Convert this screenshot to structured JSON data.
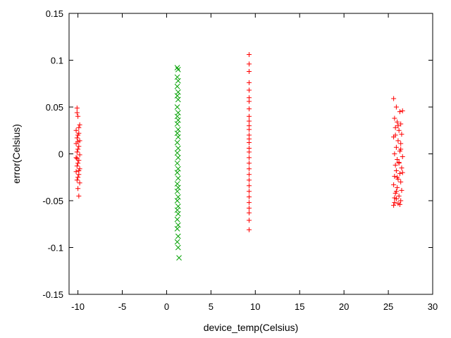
{
  "chart_data": {
    "type": "scatter",
    "title": "",
    "xlabel": "device_temp(Celsius)",
    "ylabel": "error(Celsius)",
    "xlim": [
      -11,
      30
    ],
    "ylim": [
      -0.15,
      0.15
    ],
    "xticks": [
      -10,
      -5,
      0,
      5,
      10,
      15,
      20,
      25,
      30
    ],
    "yticks": [
      -0.15,
      -0.1,
      -0.05,
      0,
      0.05,
      0.1,
      0.15
    ],
    "xtick_labels": [
      "-10",
      "-5",
      "0",
      "5",
      "10",
      "15",
      "20",
      "25",
      "30"
    ],
    "ytick_labels": [
      "-0.15",
      "-0.1",
      "-0.05",
      "0",
      "0.05",
      "0.1",
      "0.15"
    ],
    "grid": false,
    "legend": false,
    "series": [
      {
        "marker": "plus",
        "color": "#ff0000",
        "points": [
          [
            -10.1,
            0.049
          ],
          [
            -10.0,
            0.04
          ],
          [
            -9.8,
            0.031
          ],
          [
            -10.2,
            0.025
          ],
          [
            -9.9,
            0.022
          ],
          [
            -10.0,
            0.02
          ],
          [
            -10.1,
            0.017
          ],
          [
            -9.8,
            0.014
          ],
          [
            -10.2,
            0.011
          ],
          [
            -9.9,
            0.008
          ],
          [
            -10.0,
            0.005
          ],
          [
            -10.1,
            0.002
          ],
          [
            -9.8,
            -0.001
          ],
          [
            -10.2,
            -0.004
          ],
          [
            -9.9,
            -0.007
          ],
          [
            -10.0,
            -0.01
          ],
          [
            -10.1,
            -0.013
          ],
          [
            -9.8,
            -0.016
          ],
          [
            -10.2,
            -0.019
          ],
          [
            -9.9,
            -0.022
          ],
          [
            -10.0,
            -0.025
          ],
          [
            -10.1,
            -0.028
          ],
          [
            -9.8,
            -0.031
          ],
          [
            -10.0,
            -0.037
          ],
          [
            -9.9,
            -0.045
          ],
          [
            -10.1,
            0.044
          ],
          [
            -9.9,
            0.028
          ],
          [
            -10.0,
            0.013
          ],
          [
            -10.1,
            -0.005
          ],
          [
            -9.9,
            -0.018
          ],
          [
            9.3,
            0.106
          ],
          [
            9.3,
            0.096
          ],
          [
            9.3,
            0.088
          ],
          [
            9.3,
            0.076
          ],
          [
            9.3,
            0.068
          ],
          [
            9.3,
            0.06
          ],
          [
            9.3,
            0.056
          ],
          [
            9.3,
            0.048
          ],
          [
            9.3,
            0.04
          ],
          [
            9.3,
            0.035
          ],
          [
            9.3,
            0.03
          ],
          [
            9.3,
            0.026
          ],
          [
            9.3,
            0.02
          ],
          [
            9.3,
            0.016
          ],
          [
            9.3,
            0.012
          ],
          [
            9.3,
            0.006
          ],
          [
            9.3,
            0.002
          ],
          [
            9.3,
            -0.004
          ],
          [
            9.3,
            -0.01
          ],
          [
            9.3,
            -0.016
          ],
          [
            9.3,
            -0.022
          ],
          [
            9.3,
            -0.028
          ],
          [
            9.3,
            -0.034
          ],
          [
            9.3,
            -0.04
          ],
          [
            9.3,
            -0.046
          ],
          [
            9.3,
            -0.052
          ],
          [
            9.3,
            -0.058
          ],
          [
            9.3,
            -0.063
          ],
          [
            9.3,
            -0.071
          ],
          [
            9.3,
            -0.081
          ],
          [
            25.6,
            0.059
          ],
          [
            25.9,
            0.05
          ],
          [
            26.3,
            0.045
          ],
          [
            26.6,
            0.046
          ],
          [
            25.7,
            0.038
          ],
          [
            26.0,
            0.034
          ],
          [
            26.4,
            0.032
          ],
          [
            25.8,
            0.028
          ],
          [
            26.2,
            0.025
          ],
          [
            26.5,
            0.021
          ],
          [
            25.6,
            0.018
          ],
          [
            26.1,
            0.014
          ],
          [
            26.4,
            0.011
          ],
          [
            25.9,
            0.007
          ],
          [
            26.3,
            0.003
          ],
          [
            25.7,
            0.0
          ],
          [
            26.6,
            -0.003
          ],
          [
            26.0,
            -0.006
          ],
          [
            26.2,
            -0.009
          ],
          [
            25.8,
            -0.012
          ],
          [
            26.5,
            -0.015
          ],
          [
            25.9,
            -0.018
          ],
          [
            26.3,
            -0.021
          ],
          [
            25.7,
            -0.024
          ],
          [
            26.1,
            -0.027
          ],
          [
            26.4,
            -0.03
          ],
          [
            25.6,
            -0.033
          ],
          [
            26.0,
            -0.036
          ],
          [
            26.5,
            -0.039
          ],
          [
            25.8,
            -0.042
          ],
          [
            26.2,
            -0.045
          ],
          [
            25.9,
            -0.048
          ],
          [
            26.4,
            -0.05
          ],
          [
            25.7,
            -0.052
          ],
          [
            26.1,
            -0.053
          ],
          [
            26.3,
            -0.054
          ],
          [
            25.6,
            -0.055
          ],
          [
            25.9,
            -0.04
          ],
          [
            26.2,
            -0.01
          ],
          [
            25.8,
            0.02
          ],
          [
            26.0,
            -0.025
          ],
          [
            26.4,
            0.005
          ],
          [
            25.7,
            -0.047
          ],
          [
            26.6,
            -0.02
          ],
          [
            26.1,
            0.03
          ]
        ]
      },
      {
        "marker": "cross",
        "color": "#00a000",
        "points": [
          [
            1.2,
            0.092
          ],
          [
            1.3,
            0.09
          ],
          [
            1.2,
            0.082
          ],
          [
            1.3,
            0.078
          ],
          [
            1.2,
            0.072
          ],
          [
            1.3,
            0.066
          ],
          [
            1.2,
            0.062
          ],
          [
            1.3,
            0.058
          ],
          [
            1.2,
            0.05
          ],
          [
            1.3,
            0.044
          ],
          [
            1.2,
            0.04
          ],
          [
            1.3,
            0.036
          ],
          [
            1.2,
            0.032
          ],
          [
            1.3,
            0.026
          ],
          [
            1.2,
            0.022
          ],
          [
            1.3,
            0.018
          ],
          [
            1.2,
            0.012
          ],
          [
            1.3,
            0.006
          ],
          [
            1.2,
            0.001
          ],
          [
            1.3,
            -0.004
          ],
          [
            1.2,
            -0.01
          ],
          [
            1.3,
            -0.016
          ],
          [
            1.2,
            -0.02
          ],
          [
            1.3,
            -0.026
          ],
          [
            1.2,
            -0.032
          ],
          [
            1.3,
            -0.036
          ],
          [
            1.2,
            -0.04
          ],
          [
            1.3,
            -0.046
          ],
          [
            1.2,
            -0.05
          ],
          [
            1.3,
            -0.056
          ],
          [
            1.2,
            -0.06
          ],
          [
            1.3,
            -0.064
          ],
          [
            1.2,
            -0.07
          ],
          [
            1.3,
            -0.076
          ],
          [
            1.2,
            -0.08
          ],
          [
            1.3,
            -0.088
          ],
          [
            1.2,
            -0.094
          ],
          [
            1.3,
            -0.1
          ],
          [
            1.4,
            -0.111
          ]
        ]
      }
    ]
  }
}
